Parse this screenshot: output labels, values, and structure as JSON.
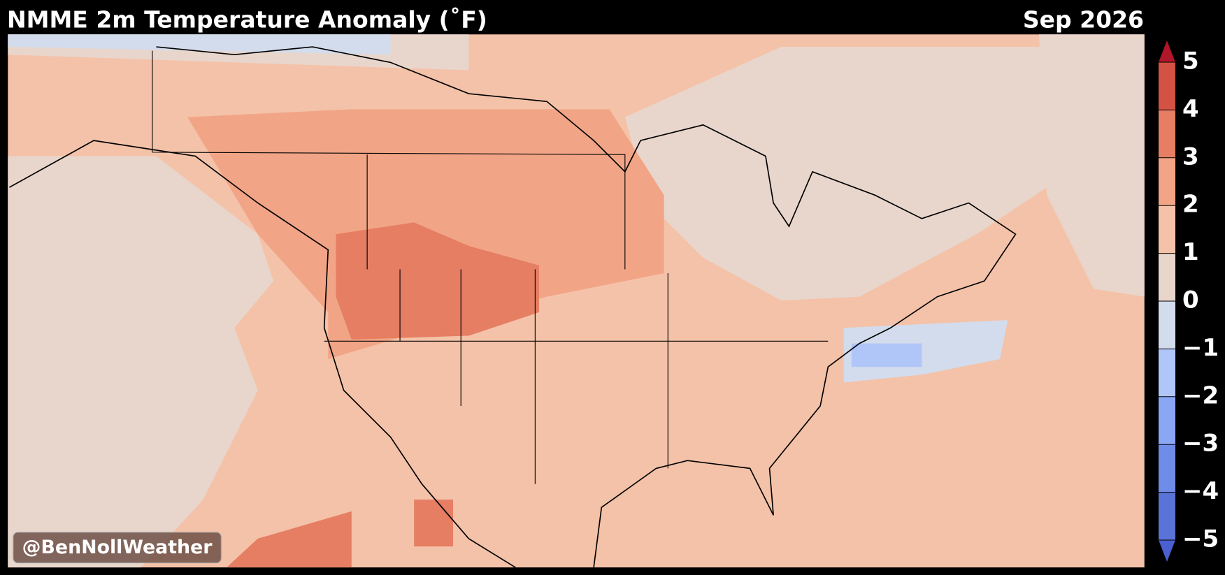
{
  "header": {
    "title": "NMME 2m Temperature Anomaly (˚F)",
    "date": "Sep 2026"
  },
  "colorbar": {
    "lim": [
      -5,
      5
    ],
    "ticks": [
      {
        "value": -5,
        "label": "−5"
      },
      {
        "value": -4,
        "label": "−4"
      },
      {
        "value": -3,
        "label": "−3"
      },
      {
        "value": -2,
        "label": "−2"
      },
      {
        "value": -1,
        "label": "−1"
      },
      0,
      1,
      2,
      3,
      4,
      5
    ],
    "colors": [
      "#5a73d6",
      "#6f8de8",
      "#8aa6f5",
      "#b0c6f8",
      "#d3dcec",
      "#e8d6cc",
      "#f4c2a8",
      "#f1a586",
      "#e57e62",
      "#d45244"
    ],
    "under_color": "#4a5fd0",
    "over_color": "#b0172a"
  },
  "watermark": "@BenNollWeather"
}
